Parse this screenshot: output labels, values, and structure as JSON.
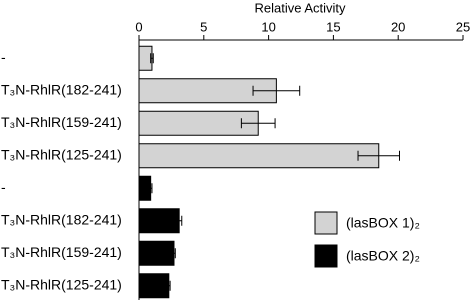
{
  "chart_data": {
    "type": "bar",
    "orientation": "horizontal",
    "title": "Relative Activity",
    "categories": [
      "-",
      "T₃N-RhlR(182-241)",
      "T₃N-RhlR(159-241)",
      "T₃N-RhlR(125-241)",
      "-",
      "T₃N-RhlR(182-241)",
      "T₃N-RhlR(159-241)",
      "T₃N-RhlR(125-241)"
    ],
    "series": [
      {
        "name": "(lasBOX 1)₂",
        "color": "#d3d3d3",
        "values": [
          1.0,
          10.6,
          9.2,
          18.5,
          null,
          null,
          null,
          null
        ],
        "errors": [
          0.1,
          1.8,
          1.3,
          1.6,
          null,
          null,
          null,
          null
        ]
      },
      {
        "name": "(lasBOX 2)₂",
        "color": "#000000",
        "values": [
          null,
          null,
          null,
          null,
          0.9,
          3.1,
          2.7,
          2.3
        ],
        "errors": [
          null,
          null,
          null,
          null,
          0.1,
          0.2,
          0.1,
          0.1
        ]
      }
    ],
    "xlim": [
      0,
      25
    ],
    "xticks": [
      0,
      5,
      10,
      15,
      20,
      25
    ]
  }
}
